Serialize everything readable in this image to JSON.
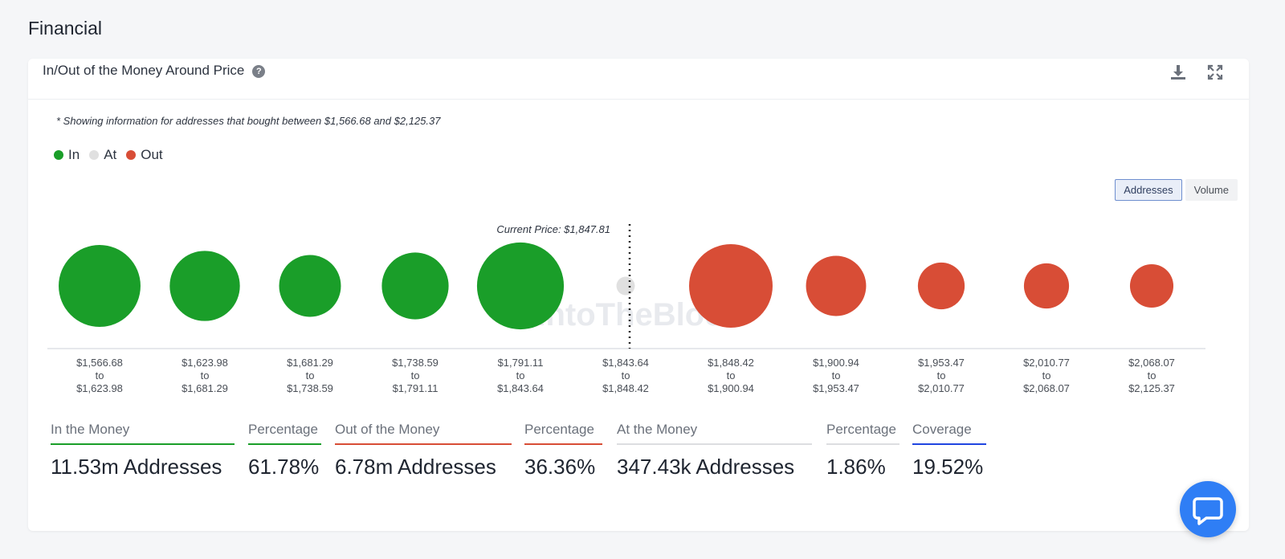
{
  "page": {
    "section_title": "Financial"
  },
  "card": {
    "title": "In/Out of the Money Around Price",
    "note": "* Showing information for addresses that bought between $1,566.68 and $2,125.37",
    "toggle": {
      "addresses": "Addresses",
      "volume": "Volume",
      "active": "Addresses"
    }
  },
  "legend": [
    {
      "label": "In",
      "color": "#1a9e29"
    },
    {
      "label": "At",
      "color": "#e0e0e0"
    },
    {
      "label": "Out",
      "color": "#d84d36"
    }
  ],
  "chart_data": {
    "type": "bubble",
    "current_price_label": "Current Price: $1,847.81",
    "watermark": "IntoTheBlock",
    "colors": {
      "in": "#1a9e29",
      "at": "#e0e0e0",
      "out": "#d84d36"
    },
    "buckets": [
      {
        "from": "$1,566.68",
        "to_word": "to",
        "to": "$1,623.98",
        "status": "in",
        "relative_size": 0.49
      },
      {
        "from": "$1,623.98",
        "to_word": "to",
        "to": "$1,681.29",
        "status": "in",
        "relative_size": 0.42
      },
      {
        "from": "$1,681.29",
        "to_word": "to",
        "to": "$1,738.59",
        "status": "in",
        "relative_size": 0.37
      },
      {
        "from": "$1,738.59",
        "to_word": "to",
        "to": "$1,791.11",
        "status": "in",
        "relative_size": 0.4
      },
      {
        "from": "$1,791.11",
        "to_word": "to",
        "to": "$1,843.64",
        "status": "in",
        "relative_size": 0.52
      },
      {
        "from": "$1,843.64",
        "to_word": "to",
        "to": "$1,848.42",
        "status": "at",
        "relative_size": 0.11
      },
      {
        "from": "$1,848.42",
        "to_word": "to",
        "to": "$1,900.94",
        "status": "out",
        "relative_size": 0.5
      },
      {
        "from": "$1,900.94",
        "to_word": "to",
        "to": "$1,953.47",
        "status": "out",
        "relative_size": 0.36
      },
      {
        "from": "$1,953.47",
        "to_word": "to",
        "to": "$2,010.77",
        "status": "out",
        "relative_size": 0.28
      },
      {
        "from": "$2,010.77",
        "to_word": "to",
        "to": "$2,068.07",
        "status": "out",
        "relative_size": 0.27
      },
      {
        "from": "$2,068.07",
        "to_word": "to",
        "to": "$2,125.37",
        "status": "out",
        "relative_size": 0.26
      }
    ]
  },
  "stats": [
    {
      "label": "In the Money",
      "value": "11.53m Addresses",
      "color": "#1a9e29"
    },
    {
      "label": "Percentage",
      "value": "61.78%",
      "color": "#1a9e29"
    },
    {
      "label": "Out of the Money",
      "value": "6.78m Addresses",
      "color": "#d84d36"
    },
    {
      "label": "Percentage",
      "value": "36.36%",
      "color": "#d84d36"
    },
    {
      "label": "At the Money",
      "value": "347.43k Addresses",
      "color": "#dcdde0"
    },
    {
      "label": "Percentage",
      "value": "1.86%",
      "color": "#dcdde0"
    },
    {
      "label": "Coverage",
      "value": "19.52%",
      "color": "#2046e0"
    }
  ]
}
